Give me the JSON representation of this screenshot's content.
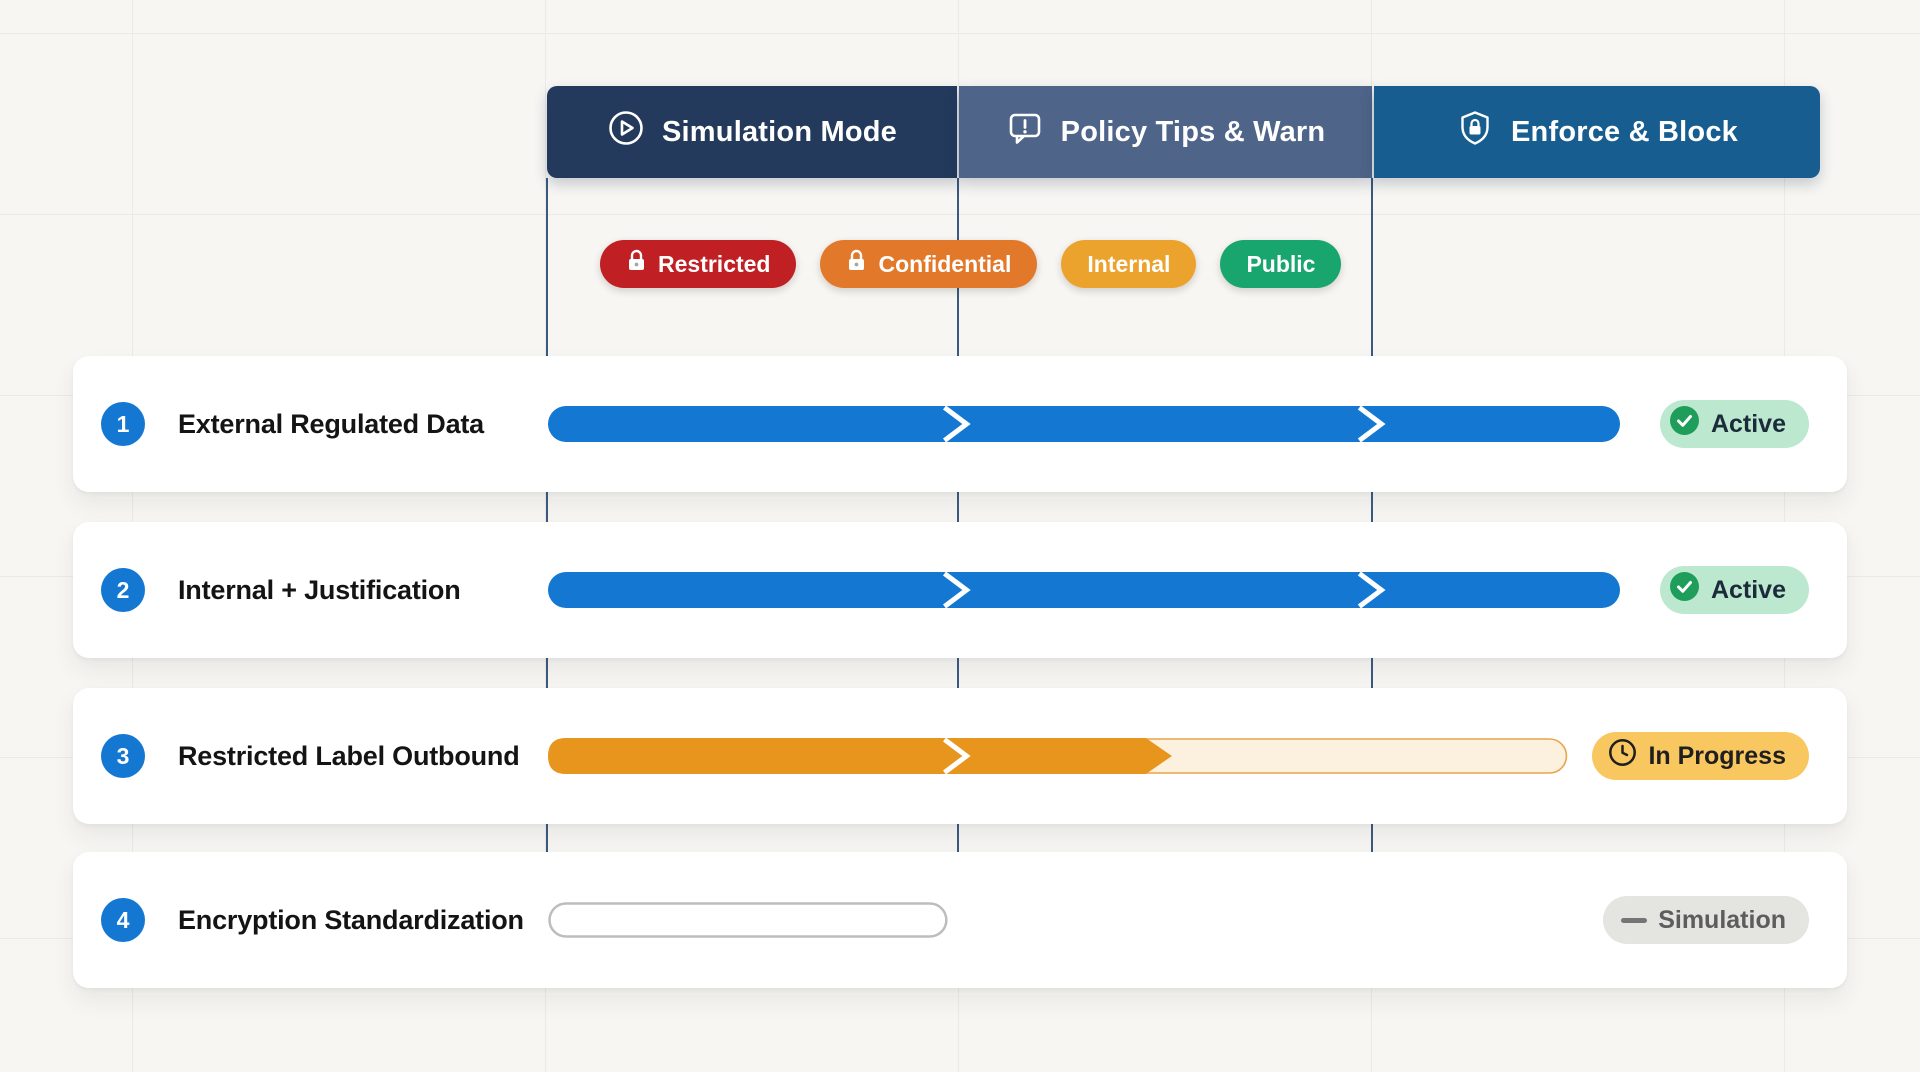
{
  "colors": {
    "bar_blue": "#1478d2",
    "bar_orange": "#e8951e",
    "track_cream": "#fcf1df",
    "track_border": "#eaa449",
    "track_gray": "#bdbdbd",
    "phase_navy": "#233a5c",
    "phase_slate": "#4e6488",
    "phase_ocean": "#175d90",
    "active_bg": "#bce8cf",
    "active_check": "#1f9d5b",
    "inprogress_bg": "#f8c75f",
    "simulation_bg": "#e4e4e1"
  },
  "header": {
    "phases": [
      {
        "label": "Simulation Mode",
        "icon": "play-circle-icon"
      },
      {
        "label": "Policy Tips & Warn",
        "icon": "alert-bubble-icon"
      },
      {
        "label": "Enforce & Block",
        "icon": "shield-lock-icon"
      }
    ]
  },
  "sensitivity_labels": [
    {
      "label": "Restricted",
      "bg": "#c01f24",
      "has_lock": true
    },
    {
      "label": "Confidential",
      "bg": "#e2792a",
      "has_lock": true
    },
    {
      "label": "Internal",
      "bg": "#eca32d",
      "has_lock": false
    },
    {
      "label": "Public",
      "bg": "#18a56e",
      "has_lock": false
    }
  ],
  "rows": [
    {
      "number": "1",
      "title": "External Regulated Data",
      "status": {
        "label": "Active",
        "type": "active"
      },
      "bar": {
        "kind": "full",
        "chevrons_pct": [
          38.2,
          76.9
        ]
      }
    },
    {
      "number": "2",
      "title": "Internal + Justification",
      "status": {
        "label": "Active",
        "type": "active"
      },
      "bar": {
        "kind": "full",
        "chevrons_pct": [
          38.2,
          76.9
        ]
      }
    },
    {
      "number": "3",
      "title": "Restricted Label Outbound",
      "status": {
        "label": "In Progress",
        "type": "in-progress"
      },
      "bar": {
        "kind": "partial",
        "track_pct": 95.1,
        "fill_pct": 58.2,
        "chevrons_pct": [
          38.2
        ]
      }
    },
    {
      "number": "4",
      "title": "Encryption Standardization",
      "status": {
        "label": "Simulation",
        "type": "simulation"
      },
      "bar": {
        "kind": "empty",
        "track_pct": 37.3,
        "chevrons_pct": []
      }
    }
  ],
  "timeline": {
    "phase_boundaries_pct": [
      38.2,
      76.9
    ]
  }
}
